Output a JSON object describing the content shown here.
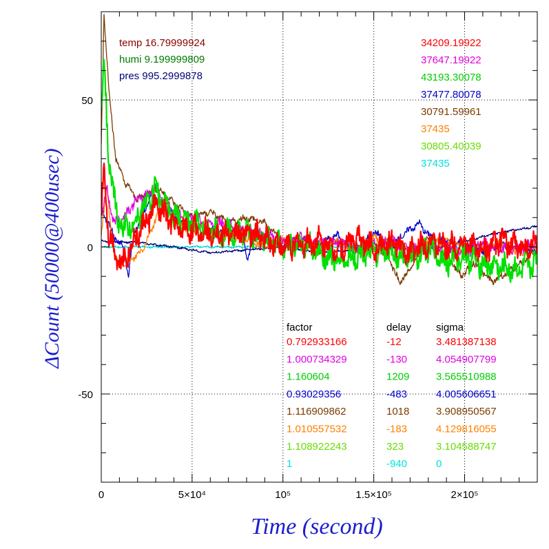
{
  "chart_data": {
    "type": "line",
    "xlabel": "Time (second)",
    "ylabel": "ΔCount (50000@400usec)",
    "xlim": [
      0,
      240000
    ],
    "ylim": [
      -80,
      80
    ],
    "grid": true,
    "x_ticks": [
      {
        "value": 0,
        "label": "0"
      },
      {
        "value": 50000,
        "label": "5×10⁴"
      },
      {
        "value": 100000,
        "label": "10⁵"
      },
      {
        "value": 150000,
        "label": "1.5×10⁵"
      },
      {
        "value": 200000,
        "label": "2×10⁵"
      }
    ],
    "y_ticks": [
      {
        "value": 50,
        "label": "50"
      },
      {
        "value": 0,
        "label": "0"
      },
      {
        "value": -50,
        "label": "-50"
      }
    ],
    "env": [
      {
        "label": "temp 16.79999924",
        "color": "#8b0000"
      },
      {
        "label": "humi 9.199999809",
        "color": "#007a00"
      },
      {
        "label": "pres 995.2999878",
        "color": "#00007a"
      }
    ],
    "counts": [
      {
        "value": "34209.19922",
        "color": "#ff0000"
      },
      {
        "value": "37647.19922",
        "color": "#e000e0"
      },
      {
        "value": "43193.30078",
        "color": "#00cc00"
      },
      {
        "value": "37477.80078",
        "color": "#0000cc"
      },
      {
        "value": "30791.59961",
        "color": "#7a3a00"
      },
      {
        "value": "37435",
        "color": "#ff7f00"
      },
      {
        "value": "30805.40039",
        "color": "#66dd00"
      },
      {
        "value": "37435",
        "color": "#00e0e0"
      }
    ],
    "table": {
      "headers": [
        "factor",
        "delay",
        "sigma"
      ],
      "rows": [
        {
          "factor": "0.792933166",
          "delay": "-12",
          "sigma": "3.481387138",
          "color": "#ff0000"
        },
        {
          "factor": "1.000734329",
          "delay": "-130",
          "sigma": "4.054907799",
          "color": "#e000e0"
        },
        {
          "factor": "1.160604",
          "delay": "1209",
          "sigma": "3.565510988",
          "color": "#00cc00"
        },
        {
          "factor": "0.93029356",
          "delay": "-483",
          "sigma": "4.005606651",
          "color": "#0000cc"
        },
        {
          "factor": "1.116909862",
          "delay": "1018",
          "sigma": "3.908950567",
          "color": "#7a3a00"
        },
        {
          "factor": "1.010557532",
          "delay": "-183",
          "sigma": "4.129816055",
          "color": "#ff7f00"
        },
        {
          "factor": "1.108922243",
          "delay": "323",
          "sigma": "3.104588747",
          "color": "#66dd00"
        },
        {
          "factor": "1",
          "delay": "-940",
          "sigma": "0",
          "color": "#00e0e0"
        }
      ]
    },
    "series": [
      {
        "color": "#00e0e0",
        "band": 0.3,
        "x": [
          0,
          40000,
          100000,
          150000,
          200000,
          240000
        ],
        "y": [
          0,
          0,
          0,
          0,
          0,
          0
        ]
      },
      {
        "color": "#00007a",
        "band": 0.3,
        "x": [
          0,
          20000,
          40000,
          60000,
          80000,
          100000,
          120000,
          140000,
          160000,
          180000,
          200000,
          220000,
          240000
        ],
        "y": [
          2,
          1.5,
          0,
          -2,
          -1,
          0,
          -2,
          -1,
          0,
          -1,
          2,
          5,
          7
        ]
      },
      {
        "color": "#0000cc",
        "band": 1,
        "x": [
          0,
          2000,
          8000,
          12000,
          15000,
          18000,
          22000,
          28000,
          35000,
          45000,
          55000,
          60000,
          70000,
          78000,
          80000,
          83000,
          90000,
          100000,
          110000,
          120000,
          130000,
          140000,
          150000,
          160000,
          170000,
          175000,
          180000,
          190000,
          200000,
          210000,
          220000,
          230000,
          240000
        ],
        "y": [
          15,
          10,
          3,
          0,
          -10,
          5,
          10,
          18,
          14,
          8,
          7,
          6,
          5,
          6,
          -5,
          2,
          3,
          0,
          3,
          1,
          4,
          -2,
          5,
          1,
          6,
          8,
          4,
          2,
          1,
          -2,
          1,
          0,
          -2
        ]
      },
      {
        "color": "#7a3a00",
        "band": 1,
        "x": [
          0,
          1500,
          4000,
          8000,
          13000,
          20000,
          25000,
          30000,
          35000,
          40000,
          50000,
          60000,
          70000,
          80000,
          90000,
          100000,
          110000,
          120000,
          130000,
          140000,
          150000,
          158000,
          164000,
          170000,
          178000,
          185000,
          190000,
          198000,
          205000,
          215000,
          225000,
          235000,
          240000
        ],
        "y": [
          35,
          80,
          55,
          30,
          22,
          16,
          18,
          20,
          18,
          15,
          10,
          12,
          8,
          10,
          8,
          2,
          3,
          -1,
          2,
          0,
          1,
          -3,
          -12,
          -8,
          3,
          -1,
          -2,
          -10,
          -5,
          -12,
          -8,
          -4,
          0
        ]
      },
      {
        "color": "#ff7f00",
        "band": 1.2,
        "x": [
          0,
          3000,
          6000,
          9000,
          14000,
          20000,
          25000,
          30000,
          35000,
          40000,
          50000,
          60000,
          70000,
          80000,
          90000,
          100000,
          110000,
          120000,
          130000,
          140000,
          150000,
          160000,
          170000,
          180000,
          190000,
          200000,
          210000,
          220000,
          230000,
          240000
        ],
        "y": [
          5,
          20,
          2,
          -6,
          -5,
          -3,
          2,
          10,
          15,
          8,
          6,
          5,
          4,
          3,
          0,
          2,
          1,
          0,
          2,
          -1,
          3,
          1,
          -2,
          1,
          2,
          -1,
          0,
          2,
          -2,
          1
        ]
      },
      {
        "color": "#e000e0",
        "band": 1.5,
        "x": [
          0,
          3000,
          7000,
          12000,
          18000,
          25000,
          30000,
          35000,
          40000,
          50000,
          60000,
          70000,
          80000,
          90000,
          100000,
          110000,
          120000,
          130000,
          140000,
          150000,
          160000,
          170000,
          180000,
          190000,
          200000,
          210000,
          220000,
          230000,
          240000
        ],
        "y": [
          10,
          20,
          8,
          10,
          15,
          18,
          20,
          15,
          12,
          10,
          8,
          8,
          6,
          4,
          2,
          3,
          1,
          2,
          0,
          1,
          2,
          -1,
          0,
          1,
          -2,
          1,
          0,
          -1,
          2
        ]
      },
      {
        "color": "#00e000",
        "band": 3.5,
        "x": [
          0,
          1500,
          4000,
          8000,
          12000,
          18000,
          25000,
          30000,
          35000,
          40000,
          50000,
          60000,
          70000,
          80000,
          90000,
          100000,
          110000,
          120000,
          130000,
          140000,
          150000,
          160000,
          170000,
          180000,
          190000,
          200000,
          210000,
          220000,
          230000,
          240000
        ],
        "y": [
          45,
          65,
          30,
          12,
          6,
          8,
          15,
          20,
          14,
          10,
          8,
          6,
          5,
          5,
          3,
          0,
          1,
          -2,
          -5,
          -3,
          -2,
          -2,
          -5,
          0,
          -5,
          -3,
          -6,
          -7,
          -8,
          -5
        ]
      },
      {
        "color": "#ff0000",
        "band": 3.5,
        "x": [
          0,
          1500,
          4000,
          8000,
          12000,
          18000,
          24000,
          30000,
          36000,
          42000,
          50000,
          60000,
          70000,
          80000,
          90000,
          100000,
          110000,
          120000,
          130000,
          140000,
          150000,
          160000,
          170000,
          180000,
          190000,
          200000,
          210000,
          220000,
          230000,
          240000
        ],
        "y": [
          10,
          28,
          5,
          -3,
          -5,
          2,
          8,
          14,
          10,
          6,
          6,
          5,
          4,
          5,
          3,
          0,
          1,
          2,
          -1,
          3,
          0,
          1,
          -2,
          2,
          0,
          1,
          -1,
          2,
          0,
          1
        ]
      }
    ]
  }
}
